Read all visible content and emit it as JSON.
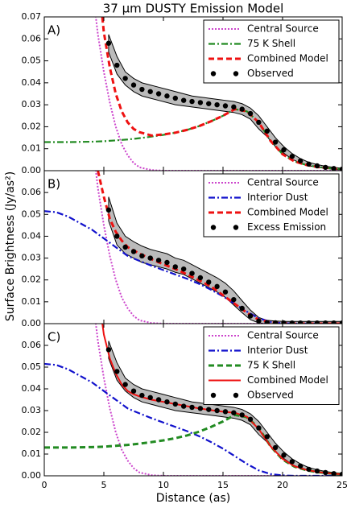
{
  "chart_data": [
    {
      "type": "line",
      "title": "37 μm DUSTY Emission Model",
      "panel_label": "A)",
      "legend": "upper right",
      "xlim": [
        0,
        25
      ],
      "ylim": [
        0,
        0.07
      ],
      "yticks": [
        {
          "value": 0,
          "label": "0.00"
        },
        0.01,
        0.02,
        0.03,
        0.04,
        0.05,
        0.06,
        0.07
      ],
      "x": [
        0,
        1,
        2,
        3,
        4,
        4.5,
        5,
        5.5,
        6,
        6.5,
        7,
        7.5,
        8,
        9,
        10,
        11,
        12,
        13,
        14,
        15,
        16,
        17,
        18,
        19,
        20,
        21,
        22,
        23,
        24,
        25
      ],
      "series": [
        {
          "name": "Central Source",
          "color": "#cc44cc",
          "style": "dotted",
          "values": [
            null,
            null,
            null,
            null,
            0.085,
            0.062,
            0.045,
            0.031,
            0.02,
            0.012,
            0.007,
            0.0035,
            0.0015,
            0.0003,
            0,
            0,
            0,
            0,
            0,
            0,
            0,
            0,
            0,
            0,
            0,
            0,
            0,
            0,
            0,
            0
          ]
        },
        {
          "name": "75 K Shell",
          "color": "#228b22",
          "style": "dashdot",
          "values": [
            0.013,
            0.013,
            0.013,
            0.0131,
            0.0132,
            0.0133,
            0.0134,
            0.0136,
            0.0138,
            0.014,
            0.0142,
            0.0145,
            0.0148,
            0.0155,
            0.0163,
            0.0173,
            0.0186,
            0.0203,
            0.0225,
            0.025,
            0.028,
            0.027,
            0.022,
            0.0135,
            0.0075,
            0.0042,
            0.0026,
            0.0016,
            0.0011,
            0.0007
          ]
        },
        {
          "name": "Combined Model",
          "color": "#ee1111",
          "style": "dashed",
          "values": [
            null,
            null,
            null,
            null,
            null,
            0.09,
            0.063,
            0.047,
            0.035,
            0.027,
            0.022,
            0.019,
            0.0175,
            0.016,
            0.0165,
            0.0173,
            0.0186,
            0.0203,
            0.0225,
            0.025,
            0.028,
            0.027,
            0.022,
            0.0135,
            0.0075,
            0.0042,
            0.0026,
            0.0016,
            0.0011,
            0.0007
          ]
        },
        {
          "name": "Observed",
          "color": "#000000",
          "style": "markers",
          "band_color": "#bbbbbb",
          "x": [
            5.4,
            6.1,
            6.8,
            7.5,
            8.2,
            8.9,
            9.6,
            10.3,
            11.0,
            11.7,
            12.4,
            13.1,
            13.8,
            14.5,
            15.2,
            15.9,
            16.6,
            17.3,
            18.0,
            18.7,
            19.4,
            20.1,
            20.8,
            21.5,
            22.2,
            22.9,
            23.6,
            24.3,
            25.0
          ],
          "values": [
            0.058,
            0.048,
            0.042,
            0.039,
            0.037,
            0.036,
            0.035,
            0.034,
            0.033,
            0.032,
            0.0315,
            0.031,
            0.0305,
            0.03,
            0.0295,
            0.029,
            0.028,
            0.026,
            0.022,
            0.018,
            0.013,
            0.0095,
            0.0065,
            0.0045,
            0.003,
            0.0022,
            0.0015,
            0.001,
            0.0007
          ],
          "band_high": [
            0.062,
            0.052,
            0.045,
            0.042,
            0.04,
            0.039,
            0.038,
            0.037,
            0.036,
            0.035,
            0.034,
            0.0335,
            0.033,
            0.0325,
            0.032,
            0.0315,
            0.0305,
            0.0285,
            0.025,
            0.02,
            0.015,
            0.011,
            0.0078,
            0.0055,
            0.0038,
            0.0028,
            0.002,
            0.0015,
            0.0011
          ],
          "band_low": [
            0.054,
            0.044,
            0.039,
            0.036,
            0.034,
            0.033,
            0.032,
            0.031,
            0.03,
            0.0295,
            0.029,
            0.0285,
            0.028,
            0.0275,
            0.027,
            0.0265,
            0.0255,
            0.0235,
            0.019,
            0.0155,
            0.011,
            0.008,
            0.0052,
            0.0035,
            0.0022,
            0.0016,
            0.001,
            0.0006,
            0.0003
          ]
        }
      ]
    },
    {
      "type": "line",
      "panel_label": "B)",
      "legend": "upper right",
      "ylabel": "Surface Brightness (Jy/as²)",
      "xlim": [
        0,
        25
      ],
      "ylim": [
        0,
        0.07
      ],
      "yticks": [
        {
          "value": 0,
          "label": "0.00"
        },
        0.01,
        0.02,
        0.03,
        0.04,
        0.05,
        0.06
      ],
      "x": [
        0,
        1,
        2,
        3,
        4,
        4.5,
        5,
        5.5,
        6,
        6.5,
        7,
        7.5,
        8,
        9,
        10,
        11,
        12,
        13,
        14,
        15,
        16,
        17,
        18,
        19,
        20,
        21,
        22,
        23,
        24,
        25
      ],
      "series": [
        {
          "name": "Central Source",
          "color": "#cc44cc",
          "style": "dotted",
          "values": [
            null,
            null,
            null,
            null,
            0.085,
            0.062,
            0.045,
            0.031,
            0.02,
            0.012,
            0.007,
            0.0035,
            0.0015,
            0.0003,
            0,
            0,
            0,
            0,
            0,
            0,
            0,
            0,
            0,
            0,
            0,
            0,
            0,
            0,
            0,
            0
          ]
        },
        {
          "name": "Interior Dust",
          "color": "#1111cc",
          "style": "dashdot",
          "values": [
            0.0515,
            0.051,
            0.049,
            0.046,
            0.043,
            0.041,
            0.039,
            0.037,
            0.035,
            0.033,
            0.031,
            0.0298,
            0.0287,
            0.0265,
            0.0245,
            0.0225,
            0.0205,
            0.0182,
            0.0155,
            0.0125,
            0.009,
            0.0055,
            0.0025,
            0.0008,
            0.0002,
            0,
            0,
            0,
            0,
            0
          ]
        },
        {
          "name": "Combined Model",
          "color": "#ee1111",
          "style": "dashed",
          "values": [
            null,
            null,
            null,
            null,
            null,
            0.07,
            0.058,
            0.048,
            0.042,
            0.038,
            0.035,
            0.0335,
            0.032,
            0.0295,
            0.0272,
            0.025,
            0.0225,
            0.0198,
            0.017,
            0.013,
            0.009,
            0.005,
            0.0018,
            0.0006,
            0.0002,
            0,
            0,
            0,
            0,
            0
          ]
        },
        {
          "name": "Excess Emission",
          "color": "#000000",
          "style": "markers",
          "band_color": "#bbbbbb",
          "x": [
            5.4,
            6.1,
            6.8,
            7.5,
            8.2,
            8.9,
            9.6,
            10.3,
            11.0,
            11.7,
            12.4,
            13.1,
            13.8,
            14.5,
            15.2,
            15.9,
            16.6,
            17.3,
            18.0,
            18.7,
            19.4,
            20.1,
            20.8,
            21.5,
            22.2,
            22.9,
            23.6,
            24.3,
            25.0
          ],
          "values": [
            0.052,
            0.04,
            0.035,
            0.033,
            0.031,
            0.03,
            0.029,
            0.028,
            0.026,
            0.025,
            0.023,
            0.021,
            0.019,
            0.017,
            0.0145,
            0.011,
            0.007,
            0.0035,
            0.0012,
            0.0005,
            0.0004,
            0.0003,
            0.0003,
            0.0003,
            0.0003,
            0.0003,
            0.0003,
            0.0003,
            0.0003
          ],
          "band_high": [
            0.058,
            0.046,
            0.04,
            0.0375,
            0.0355,
            0.034,
            0.033,
            0.032,
            0.03,
            0.029,
            0.027,
            0.025,
            0.023,
            0.021,
            0.0185,
            0.015,
            0.0105,
            0.0062,
            0.0028,
            0.0015,
            0.0012,
            0.001,
            0.001,
            0.001,
            0.001,
            0.001,
            0.001,
            0.001,
            0.001
          ],
          "band_low": [
            0.047,
            0.036,
            0.032,
            0.03,
            0.028,
            0.027,
            0.026,
            0.025,
            0.0235,
            0.0225,
            0.0205,
            0.0185,
            0.0165,
            0.0145,
            0.012,
            0.0085,
            0.005,
            0.0018,
            0.0003,
            0,
            0,
            0,
            0,
            0,
            0,
            0,
            0,
            0,
            0
          ]
        }
      ]
    },
    {
      "type": "line",
      "panel_label": "C)",
      "legend": "upper right",
      "xlabel": "Distance (as)",
      "xlim": [
        0,
        25
      ],
      "ylim": [
        0,
        0.07
      ],
      "xticks": [
        0,
        5,
        10,
        15,
        20,
        25
      ],
      "yticks": [
        {
          "value": 0,
          "label": "0.00"
        },
        0.01,
        0.02,
        0.03,
        0.04,
        0.05,
        0.06
      ],
      "x": [
        0,
        1,
        2,
        3,
        4,
        4.5,
        5,
        5.5,
        6,
        6.5,
        7,
        7.5,
        8,
        9,
        10,
        11,
        12,
        13,
        14,
        15,
        16,
        17,
        18,
        19,
        20,
        21,
        22,
        23,
        24,
        25
      ],
      "series": [
        {
          "name": "Central Source",
          "color": "#cc44cc",
          "style": "dotted",
          "values": [
            null,
            null,
            null,
            null,
            0.085,
            0.062,
            0.045,
            0.031,
            0.02,
            0.012,
            0.007,
            0.0035,
            0.0015,
            0.0003,
            0,
            0,
            0,
            0,
            0,
            0,
            0,
            0,
            0,
            0,
            0,
            0,
            0,
            0,
            0,
            0
          ]
        },
        {
          "name": "Interior Dust",
          "color": "#1111cc",
          "style": "dashdot",
          "values": [
            0.0515,
            0.051,
            0.049,
            0.046,
            0.043,
            0.041,
            0.039,
            0.037,
            0.035,
            0.033,
            0.031,
            0.0298,
            0.0287,
            0.0265,
            0.0245,
            0.0225,
            0.0205,
            0.0182,
            0.0155,
            0.0125,
            0.009,
            0.0055,
            0.0025,
            0.0008,
            0.0002,
            0,
            0,
            0,
            0,
            0
          ]
        },
        {
          "name": "75 K Shell",
          "color": "#228b22",
          "style": "dashed",
          "values": [
            0.013,
            0.013,
            0.013,
            0.0131,
            0.0132,
            0.0133,
            0.0134,
            0.0136,
            0.0138,
            0.014,
            0.0142,
            0.0145,
            0.0148,
            0.0155,
            0.0163,
            0.0173,
            0.0186,
            0.0203,
            0.0225,
            0.025,
            0.028,
            0.027,
            0.022,
            0.0135,
            0.0075,
            0.0042,
            0.0026,
            0.0016,
            0.0011,
            0.0007
          ]
        },
        {
          "name": "Combined Model",
          "color": "#ee1111",
          "style": "solid",
          "values": [
            null,
            null,
            null,
            null,
            null,
            0.085,
            0.065,
            0.054,
            0.047,
            0.042,
            0.039,
            0.0375,
            0.0365,
            0.035,
            0.034,
            0.033,
            0.032,
            0.031,
            0.0302,
            0.0295,
            0.029,
            0.0272,
            0.0215,
            0.0135,
            0.0078,
            0.0044,
            0.0027,
            0.0017,
            0.0011,
            0.0007
          ]
        },
        {
          "name": "Observed",
          "color": "#000000",
          "style": "markers",
          "band_color": "#bbbbbb",
          "x": [
            5.4,
            6.1,
            6.8,
            7.5,
            8.2,
            8.9,
            9.6,
            10.3,
            11.0,
            11.7,
            12.4,
            13.1,
            13.8,
            14.5,
            15.2,
            15.9,
            16.6,
            17.3,
            18.0,
            18.7,
            19.4,
            20.1,
            20.8,
            21.5,
            22.2,
            22.9,
            23.6,
            24.3,
            25.0
          ],
          "values": [
            0.058,
            0.048,
            0.042,
            0.039,
            0.037,
            0.036,
            0.035,
            0.034,
            0.033,
            0.032,
            0.0315,
            0.031,
            0.0305,
            0.03,
            0.0295,
            0.029,
            0.028,
            0.026,
            0.022,
            0.018,
            0.013,
            0.0095,
            0.0065,
            0.0045,
            0.003,
            0.0022,
            0.0015,
            0.001,
            0.0007
          ],
          "band_high": [
            0.062,
            0.052,
            0.045,
            0.042,
            0.04,
            0.039,
            0.038,
            0.037,
            0.036,
            0.035,
            0.034,
            0.0335,
            0.033,
            0.0325,
            0.032,
            0.0315,
            0.0305,
            0.0285,
            0.025,
            0.02,
            0.015,
            0.011,
            0.0078,
            0.0055,
            0.0038,
            0.0028,
            0.002,
            0.0015,
            0.0011
          ],
          "band_low": [
            0.054,
            0.044,
            0.039,
            0.036,
            0.034,
            0.033,
            0.032,
            0.031,
            0.03,
            0.0295,
            0.029,
            0.0285,
            0.028,
            0.0275,
            0.027,
            0.0265,
            0.0255,
            0.0235,
            0.019,
            0.0155,
            0.011,
            0.008,
            0.0052,
            0.0035,
            0.0022,
            0.0016,
            0.001,
            0.0006,
            0.0003
          ]
        }
      ]
    }
  ]
}
